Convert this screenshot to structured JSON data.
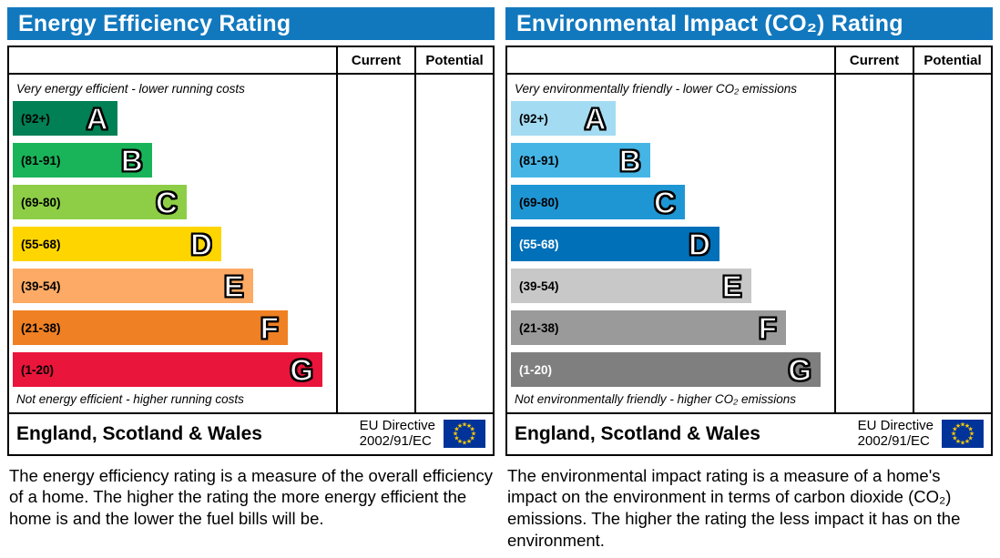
{
  "theme": {
    "header_bg": "#1278be",
    "header_text": "#ffffff",
    "border_color": "#000000",
    "eu_flag_bg": "#003399",
    "eu_star_color": "#ffcc00"
  },
  "panels": [
    {
      "title": "Energy Efficiency Rating",
      "columns": {
        "current": "Current",
        "potential": "Potential"
      },
      "top_note": "Very energy efficient - lower running costs",
      "bottom_note": "Not energy efficient - higher running costs",
      "bands": [
        {
          "range": "(92+)",
          "letter": "A",
          "color": "#008054",
          "width": "33%",
          "label_color": "#000000"
        },
        {
          "range": "(81-91)",
          "letter": "B",
          "color": "#19b459",
          "width": "44%",
          "label_color": "#000000"
        },
        {
          "range": "(69-80)",
          "letter": "C",
          "color": "#8dce46",
          "width": "55%",
          "label_color": "#000000"
        },
        {
          "range": "(55-68)",
          "letter": "D",
          "color": "#ffd500",
          "width": "66%",
          "label_color": "#000000"
        },
        {
          "range": "(39-54)",
          "letter": "E",
          "color": "#fcaa65",
          "width": "76%",
          "label_color": "#000000"
        },
        {
          "range": "(21-38)",
          "letter": "F",
          "color": "#ef8023",
          "width": "87%",
          "label_color": "#000000"
        },
        {
          "range": "(1-20)",
          "letter": "G",
          "color": "#e9153b",
          "width": "98%",
          "label_color": "#000000"
        }
      ],
      "footer": {
        "region": "England, Scotland & Wales",
        "directive_line1": "EU Directive",
        "directive_line2": "2002/91/EC"
      },
      "caption": "The energy efficiency rating is a measure of the overall efficiency of a home. The higher the rating the more energy efficient the home is and the lower the fuel bills will be."
    },
    {
      "title": "Environmental Impact (CO₂) Rating",
      "columns": {
        "current": "Current",
        "potential": "Potential"
      },
      "top_note": "Very environmentally friendly - lower CO₂ emissions",
      "bottom_note": "Not environmentally friendly - higher CO₂ emissions",
      "bands": [
        {
          "range": "(92+)",
          "letter": "A",
          "color": "#a3dbf2",
          "width": "33%",
          "label_color": "#000000"
        },
        {
          "range": "(81-91)",
          "letter": "B",
          "color": "#45b5e6",
          "width": "44%",
          "label_color": "#000000"
        },
        {
          "range": "(69-80)",
          "letter": "C",
          "color": "#1e96d4",
          "width": "55%",
          "label_color": "#000000"
        },
        {
          "range": "(55-68)",
          "letter": "D",
          "color": "#0070b8",
          "width": "66%",
          "label_color": "#ffffff"
        },
        {
          "range": "(39-54)",
          "letter": "E",
          "color": "#c8c8c8",
          "width": "76%",
          "label_color": "#000000"
        },
        {
          "range": "(21-38)",
          "letter": "F",
          "color": "#9a9a9a",
          "width": "87%",
          "label_color": "#000000"
        },
        {
          "range": "(1-20)",
          "letter": "G",
          "color": "#7f7f7f",
          "width": "98%",
          "label_color": "#ffffff"
        }
      ],
      "footer": {
        "region": "England, Scotland & Wales",
        "directive_line1": "EU Directive",
        "directive_line2": "2002/91/EC"
      },
      "caption": "The environmental impact rating is a measure of a home's impact on the environment in terms of carbon dioxide (CO₂) emissions. The higher the rating the less impact it has on the environment."
    }
  ],
  "chart_data": [
    {
      "type": "bar",
      "orientation": "horizontal",
      "title": "Energy Efficiency Rating",
      "categories": [
        "A",
        "B",
        "C",
        "D",
        "E",
        "F",
        "G"
      ],
      "tick_ranges": [
        "92+",
        "81-91",
        "69-80",
        "55-68",
        "39-54",
        "21-38",
        "1-20"
      ],
      "values": [
        33,
        44,
        55,
        66,
        76,
        87,
        98
      ],
      "values_note": "relative band bar widths in % of plot width; bands form a fixed EPC rating scale",
      "colors": [
        "#008054",
        "#19b459",
        "#8dce46",
        "#ffd500",
        "#fcaa65",
        "#ef8023",
        "#e9153b"
      ],
      "columns": [
        "Current",
        "Potential"
      ],
      "current_value": "",
      "potential_value": "",
      "annotations": [
        "Very energy efficient - lower running costs",
        "Not energy efficient - higher running costs"
      ],
      "footer": "England, Scotland & Wales — EU Directive 2002/91/EC"
    },
    {
      "type": "bar",
      "orientation": "horizontal",
      "title": "Environmental Impact (CO₂) Rating",
      "categories": [
        "A",
        "B",
        "C",
        "D",
        "E",
        "F",
        "G"
      ],
      "tick_ranges": [
        "92+",
        "81-91",
        "69-80",
        "55-68",
        "39-54",
        "21-38",
        "1-20"
      ],
      "values": [
        33,
        44,
        55,
        66,
        76,
        87,
        98
      ],
      "values_note": "relative band bar widths in % of plot width; bands form a fixed EPC rating scale",
      "colors": [
        "#a3dbf2",
        "#45b5e6",
        "#1e96d4",
        "#0070b8",
        "#c8c8c8",
        "#9a9a9a",
        "#7f7f7f"
      ],
      "columns": [
        "Current",
        "Potential"
      ],
      "current_value": "",
      "potential_value": "",
      "annotations": [
        "Very environmentally friendly - lower CO₂ emissions",
        "Not environmentally friendly - higher CO₂ emissions"
      ],
      "footer": "England, Scotland & Wales — EU Directive 2002/91/EC"
    }
  ]
}
